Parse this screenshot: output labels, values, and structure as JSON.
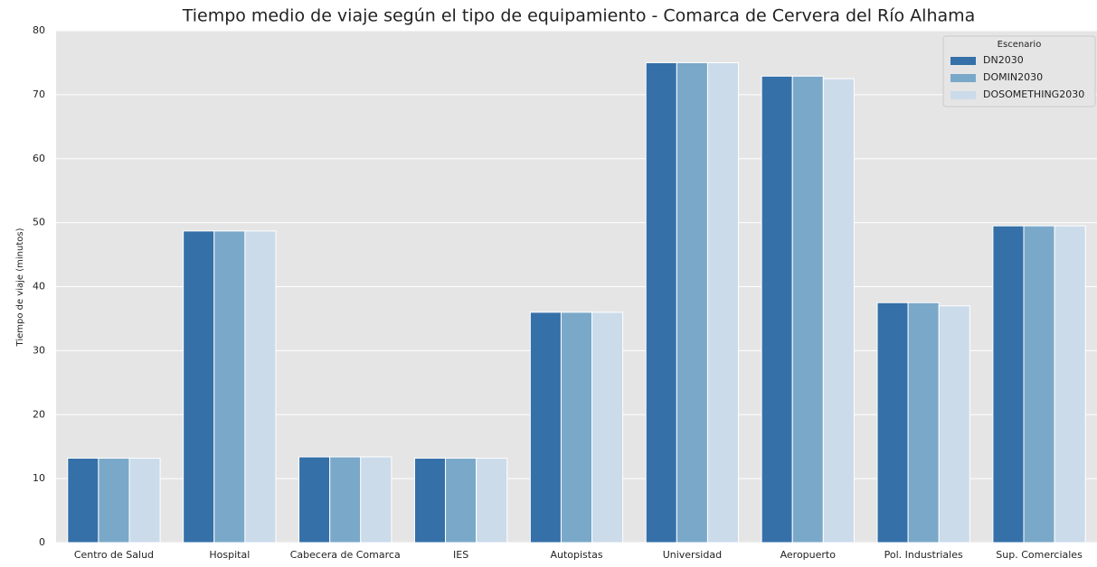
{
  "chart_data": {
    "type": "bar",
    "title": "Tiempo medio de viaje según el tipo de equipamiento - Comarca de Cervera del Río Alhama",
    "y_label": "Tiempo de viaje (minutos)",
    "categories": [
      "Centro de Salud",
      "Hospital",
      "Cabecera de Comarca",
      "IES",
      "Autopistas",
      "Universidad",
      "Aeropuerto",
      "Pol. Industriales",
      "Sup. Comerciales"
    ],
    "series": [
      {
        "name": "DN2030",
        "color": "#3570a8",
        "values": [
          13.2,
          48.7,
          13.4,
          13.2,
          36.0,
          75.0,
          72.9,
          37.5,
          49.5
        ]
      },
      {
        "name": "DOMIN2030",
        "color": "#7aa8c9",
        "values": [
          13.2,
          48.7,
          13.4,
          13.2,
          36.0,
          75.0,
          72.9,
          37.5,
          49.5
        ]
      },
      {
        "name": "DOSOMETHING2030",
        "color": "#cbdbea",
        "values": [
          13.2,
          48.7,
          13.4,
          13.2,
          36.0,
          75.0,
          72.5,
          37.0,
          49.5
        ]
      }
    ],
    "legend_title": "Escenario",
    "legend": "upper right",
    "ylim": [
      0,
      80
    ],
    "yticks": [
      0,
      10,
      20,
      30,
      40,
      50,
      60,
      70,
      80
    ],
    "grid": true
  }
}
